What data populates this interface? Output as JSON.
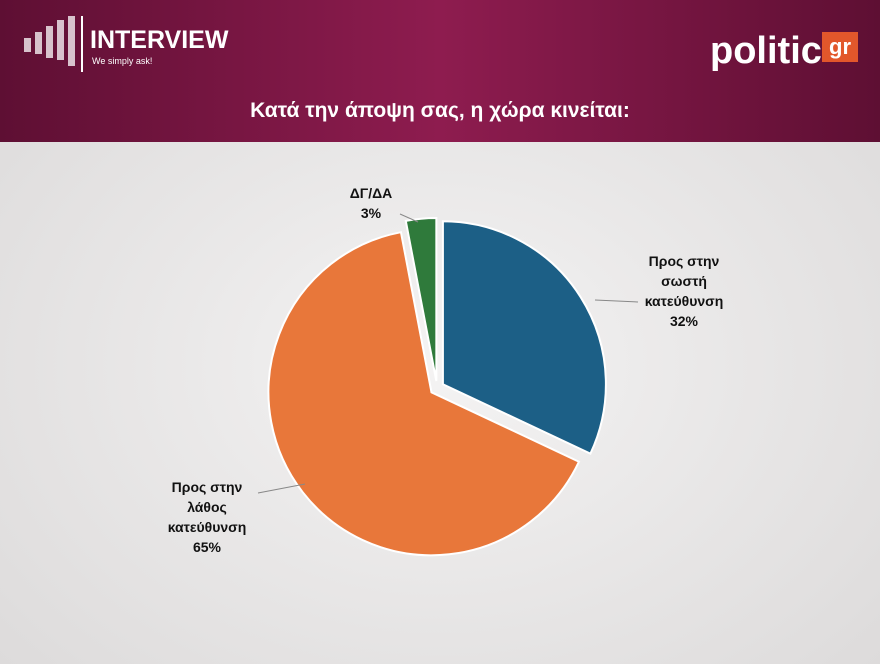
{
  "header": {
    "brand": "INTERVIEW",
    "tagline": "We simply ask!",
    "site": "politic",
    "site_suffix": "gr"
  },
  "chart_data": {
    "type": "pie",
    "title": "Κατά την άποψη σας, η χώρα κινείται:",
    "categories": [
      "Προς στην\nσωστή\nκατεύθυνση",
      "Προς στην\nλάθος\nκατεύθυνση",
      "ΔΓ/ΔΑ"
    ],
    "values": [
      32,
      65,
      3
    ],
    "value_labels": [
      "32%",
      "65%",
      "3%"
    ],
    "colors": [
      "#1c5f86",
      "#e8773a",
      "#2f7a3b"
    ]
  }
}
